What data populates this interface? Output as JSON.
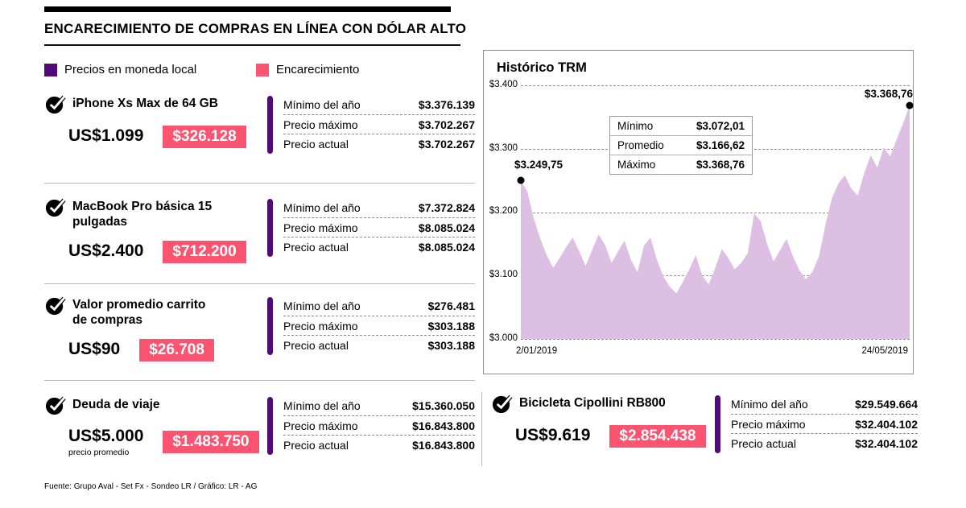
{
  "header": {
    "title": "ENCARECIMIENTO DE COMPRAS EN LÍNEA CON DÓLAR ALTO"
  },
  "legend": [
    {
      "label": "Precios en moneda local"
    },
    {
      "label": "Encarecimiento"
    }
  ],
  "colors": {
    "purple": "#500b79",
    "pink": "#fa5470",
    "area": "#debfe4"
  },
  "field_labels": {
    "min": "Mínimo del año",
    "max": "Precio máximo",
    "current": "Precio actual"
  },
  "products": [
    {
      "name": "iPhone Xs Max de 64 GB",
      "name2": "",
      "usd": "US$1.099",
      "usd_note": "",
      "increase": "$326.128",
      "min": "$3.376.139",
      "max": "$3.702.267",
      "current": "$3.702.267"
    },
    {
      "name": "MacBook Pro básica 15 pulgadas",
      "name2": "",
      "usd": "US$2.400",
      "usd_note": "",
      "increase": "$712.200",
      "min": "$7.372.824",
      "max": "$8.085.024",
      "current": "$8.085.024"
    },
    {
      "name": "Valor promedio carrito",
      "name2": "de compras",
      "usd": "US$90",
      "usd_note": "",
      "increase": "$26.708",
      "min": "$276.481",
      "max": "$303.188",
      "current": "$303.188"
    },
    {
      "name": "Deuda de viaje",
      "name2": "",
      "usd": "US$5.000",
      "usd_note": "precio promedio",
      "increase": "$1.483.750",
      "min": "$15.360.050",
      "max": "$16.843.800",
      "current": "$16.843.800"
    },
    {
      "name": "Bicicleta Cipollini RB800",
      "name2": "",
      "usd": "US$9.619",
      "usd_note": "",
      "increase": "$2.854.438",
      "min": "$29.549.664",
      "max": "$32.404.102",
      "current": "$32.404.102"
    }
  ],
  "chart_data": {
    "type": "area",
    "title": "Histórico TRM",
    "xlabel": "",
    "ylabel": "",
    "ylim": [
      3000,
      3400
    ],
    "y_ticks": [
      "$3.400",
      "$3.300",
      "$3.200",
      "$3.100",
      "$3.000"
    ],
    "x_start_label": "2/01/2019",
    "x_end_label": "24/05/2019",
    "start_annotation": "$3.249,75",
    "end_annotation": "$3.368,76",
    "grid": "dashed-horizontal",
    "stats": [
      {
        "label": "Mínimo",
        "value": "$3.072,01"
      },
      {
        "label": "Promedio",
        "value": "$3.166,62"
      },
      {
        "label": "Máximo",
        "value": "$3.368,76"
      }
    ],
    "values": [
      3249.75,
      3232,
      3190,
      3158,
      3132,
      3112,
      3128,
      3145,
      3160,
      3138,
      3115,
      3140,
      3165,
      3148,
      3120,
      3138,
      3155,
      3125,
      3105,
      3147,
      3160,
      3125,
      3098,
      3082,
      3072.01,
      3090,
      3110,
      3132,
      3100,
      3086,
      3112,
      3142,
      3128,
      3110,
      3120,
      3135,
      3198,
      3186,
      3150,
      3122,
      3140,
      3158,
      3130,
      3108,
      3094,
      3106,
      3130,
      3180,
      3222,
      3245,
      3258,
      3237,
      3226,
      3262,
      3290,
      3270,
      3302,
      3288,
      3315,
      3340,
      3368.76
    ]
  },
  "footer": {
    "source": "Fuente: Grupo Aval - Set Fx - Sondeo LR / Gráfico: LR - AG"
  }
}
